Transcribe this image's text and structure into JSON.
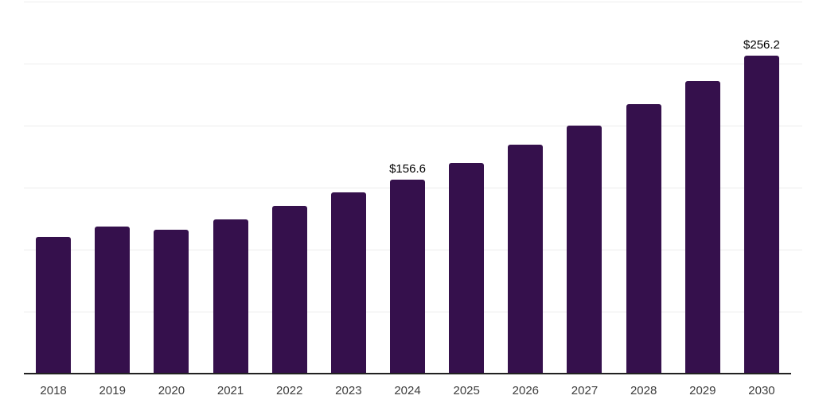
{
  "chart_data": {
    "type": "bar",
    "title": "",
    "xlabel": "",
    "ylabel": "",
    "categories": [
      "2018",
      "2019",
      "2020",
      "2021",
      "2022",
      "2023",
      "2024",
      "2025",
      "2026",
      "2027",
      "2028",
      "2029",
      "2030"
    ],
    "values": [
      110.4,
      118.6,
      116.0,
      124.4,
      135.0,
      146.2,
      156.6,
      170.0,
      184.5,
      200.3,
      217.4,
      236.0,
      256.2
    ],
    "annotations": [
      {
        "category": "2024",
        "text": "$156.6"
      },
      {
        "category": "2030",
        "text": "$256.2"
      }
    ],
    "ylim": [
      0,
      300
    ],
    "gridline_step": 50,
    "grid": true,
    "legend": "none",
    "y_axis_tick_labels": "hidden",
    "colors": {
      "bar": "#35104c",
      "axis_line": "#212121",
      "gridline": "#ededed",
      "tick_label": "#3d3d3d",
      "value_label": "#000000",
      "background": "#ffffff"
    }
  }
}
